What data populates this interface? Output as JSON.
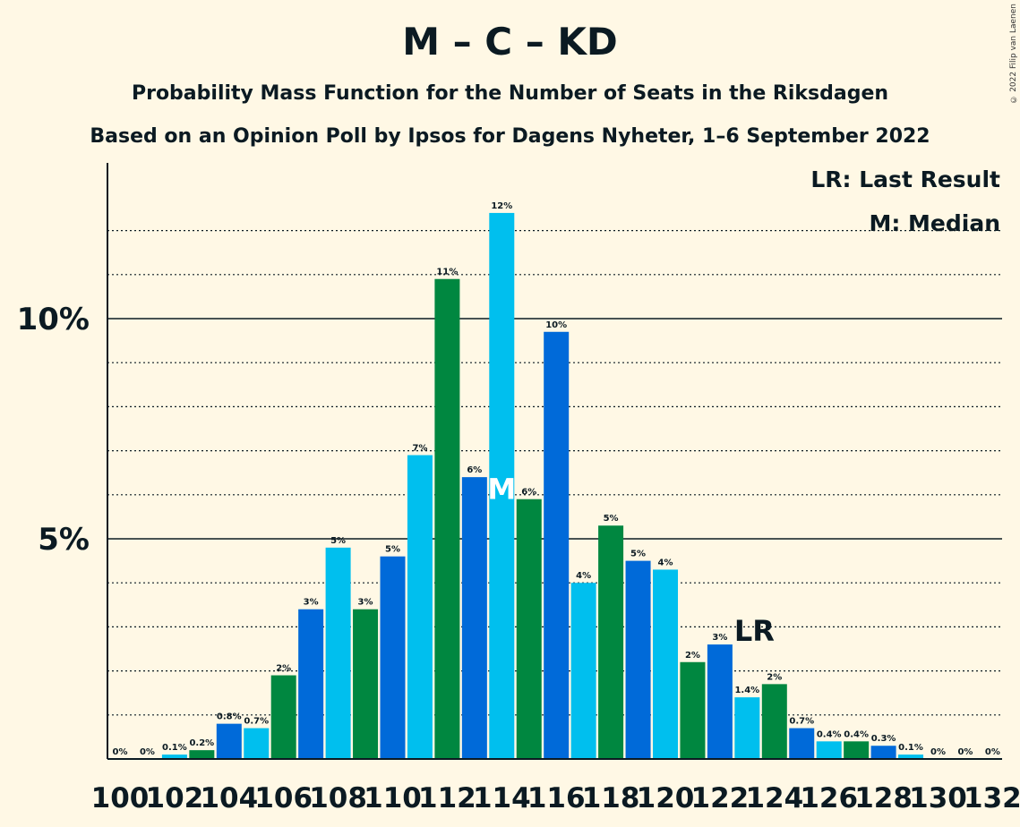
{
  "title": "M – C – KD",
  "subtitle1": "Probability Mass Function for the Number of Seats in the Riksdagen",
  "subtitle2": "Based on an Opinion Poll by Ipsos for Dagens Nyheter, 1–6 September 2022",
  "copyright": "© 2022 Filip van Laenen",
  "legend": {
    "last_result": "LR: Last Result",
    "median": "M: Median"
  },
  "colors": {
    "background": "#fff8e5",
    "M": "#006ad9",
    "C": "#00bfee",
    "KD": "#008740",
    "text": "#0b1a22"
  },
  "chart_data": {
    "type": "bar",
    "x": [
      100,
      101,
      102,
      103,
      104,
      105,
      106,
      107,
      108,
      109,
      110,
      111,
      112,
      113,
      114,
      115,
      116,
      117,
      118,
      119,
      120,
      121,
      122,
      123,
      124,
      125,
      126,
      127,
      128,
      129,
      130,
      131,
      132
    ],
    "values": [
      0,
      0,
      0.1,
      0.2,
      0.8,
      0.7,
      1.9,
      3.4,
      4.8,
      3.4,
      4.6,
      6.9,
      10.9,
      6.4,
      12.4,
      5.9,
      9.7,
      4.0,
      5.3,
      4.5,
      4.3,
      2.2,
      2.6,
      1.4,
      1.7,
      0.7,
      0.4,
      0.4,
      0.3,
      0.1,
      0,
      0,
      0
    ],
    "labels": [
      "0%",
      "0%",
      "0.1%",
      "0.2%",
      "0.8%",
      "0.7%",
      "2%",
      "3%",
      "5%",
      "3%",
      "5%",
      "7%",
      "11%",
      "6%",
      "12%",
      "6%",
      "10%",
      "4%",
      "5%",
      "5%",
      "4%",
      "2%",
      "3%",
      "1.4%",
      "2%",
      "0.7%",
      "0.4%",
      "0.4%",
      "0.3%",
      "0.1%",
      "0%",
      "0%",
      "0%"
    ],
    "bar_colors": [
      "C",
      "KD",
      "C",
      "KD",
      "M",
      "C",
      "KD",
      "M",
      "C",
      "KD",
      "M",
      "C",
      "KD",
      "M",
      "C",
      "KD",
      "M",
      "C",
      "KD",
      "M",
      "C",
      "KD",
      "M",
      "C",
      "KD",
      "M",
      "C",
      "KD",
      "M",
      "C",
      "KD",
      "M",
      "C"
    ],
    "x_tick_labels": [
      "100",
      "102",
      "104",
      "106",
      "108",
      "110",
      "112",
      "114",
      "116",
      "118",
      "120",
      "122",
      "124",
      "126",
      "128",
      "130",
      "132"
    ],
    "y_tick_labels": [
      "5%",
      "10%"
    ],
    "y_ticks": [
      5,
      10
    ],
    "ylim": [
      0,
      13.6
    ],
    "grid": true,
    "median_seat": 114,
    "median_label": "M",
    "last_result_seat": 122,
    "last_result_label": "LR"
  }
}
